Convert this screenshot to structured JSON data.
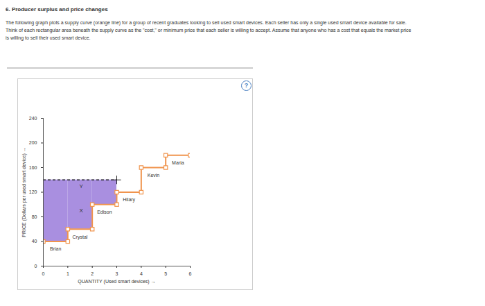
{
  "chart_data": {
    "type": "step",
    "title": "6. Producer surplus and price changes",
    "subtitle": "The following graph plots a supply curve (orange line) for a group of recent graduates looking to sell used smart devices. Each seller has only a single used smart device available for sale. Think of each rectangular area beneath the supply curve as the \"cost,\" or minimum price that each seller is willing to accept. Assume that anyone who has a cost that equals the market price is willing to sell their used smart device.",
    "help_label": "?",
    "x_label": "QUANTITY (Used smart devices)",
    "y_label": "PRICE (Dollars per used smart device)",
    "xlim": [
      0,
      6
    ],
    "xticks": [
      0,
      1,
      2,
      3,
      4,
      5,
      6
    ],
    "ylim": [
      0,
      240
    ],
    "yticks": [
      0,
      40,
      80,
      120,
      160,
      200,
      240
    ],
    "grid": false,
    "color": "#f0944d",
    "marker": "square",
    "sellers": [
      {
        "name": "Brian",
        "quantity": [
          0,
          1
        ],
        "price": 40
      },
      {
        "name": "Crystal",
        "quantity": [
          1,
          2
        ],
        "price": 60
      },
      {
        "name": "Edison",
        "quantity": [
          2,
          3
        ],
        "price": 100
      },
      {
        "name": "Hilary",
        "quantity": [
          3,
          4
        ],
        "price": 120
      },
      {
        "name": "Kevin",
        "quantity": [
          4,
          5
        ],
        "price": 160
      },
      {
        "name": "Maria",
        "quantity": [
          5,
          6
        ],
        "price": 180
      }
    ],
    "price_line": {
      "value": 140,
      "quantity": [
        0,
        3
      ],
      "color": "#222222",
      "line_style": "dashed",
      "marker": "cross"
    },
    "surplus": {
      "color": "#a98fe0"
    },
    "annotations": [
      {
        "text": "X",
        "x": 1.55,
        "y": 90
      },
      {
        "text": "Y",
        "x": 1.55,
        "y": 130
      }
    ]
  }
}
